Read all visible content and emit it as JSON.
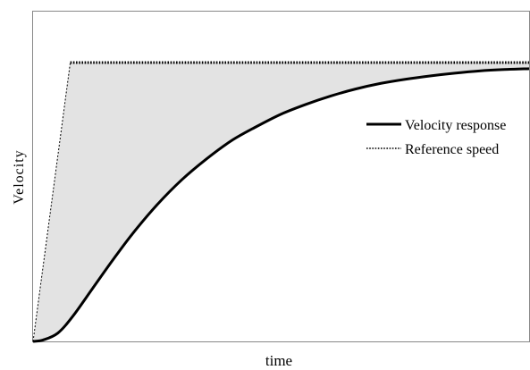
{
  "chart_data": {
    "type": "line",
    "title": "",
    "xlabel": "time",
    "ylabel": "Velocity",
    "xlim": [
      0,
      1
    ],
    "ylim": [
      0,
      1
    ],
    "grid": false,
    "legend_position": "right",
    "fill_between_series": true,
    "fill_color": "#e3e3e3",
    "series": [
      {
        "name": "Velocity response",
        "style": "solid",
        "color": "#000000",
        "x": [
          0,
          0.02,
          0.05,
          0.08,
          0.12,
          0.16,
          0.2,
          0.25,
          0.3,
          0.35,
          0.4,
          0.45,
          0.5,
          0.55,
          0.6,
          0.65,
          0.7,
          0.75,
          0.8,
          0.85,
          0.9,
          0.95,
          1.0
        ],
        "y": [
          0,
          0.005,
          0.03,
          0.09,
          0.19,
          0.29,
          0.385,
          0.49,
          0.58,
          0.655,
          0.72,
          0.77,
          0.815,
          0.85,
          0.88,
          0.905,
          0.925,
          0.94,
          0.952,
          0.962,
          0.97,
          0.975,
          0.978
        ]
      },
      {
        "name": "Reference speed",
        "style": "dotted",
        "color": "#000000",
        "x": [
          0,
          0.075,
          1.0
        ],
        "y": [
          0,
          1.0,
          1.0
        ]
      }
    ]
  }
}
